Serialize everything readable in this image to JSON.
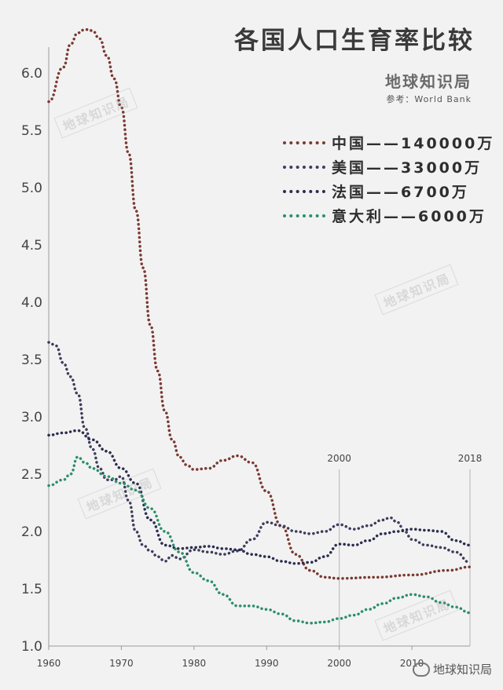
{
  "chart_data": {
    "type": "line",
    "title": "各国人口生育率比较",
    "brand": "地球知识局",
    "source": "参考：World Bank",
    "ylim": [
      1.0,
      6.5
    ],
    "yticks": [
      "1.0",
      "1.5",
      "2.0",
      "2.5",
      "3.0",
      "3.5",
      "4.0",
      "4.5",
      "5.0",
      "5.5",
      "6.0"
    ],
    "xlim": [
      1960,
      2018
    ],
    "xticks": [
      "1960",
      "1970",
      "1980",
      "1990",
      "2000",
      "2010"
    ],
    "reference_lines": [
      {
        "x": 2000,
        "label": "2000"
      },
      {
        "x": 2018,
        "label": "2018"
      }
    ],
    "grid": false,
    "legend_position": "top-right",
    "series": [
      {
        "name": "中国",
        "legend_label": "中国——140000万",
        "color": "#7a3a32",
        "points": [
          [
            1960,
            5.75
          ],
          [
            1962,
            6.05
          ],
          [
            1963,
            6.25
          ],
          [
            1964,
            6.35
          ],
          [
            1965,
            6.38
          ],
          [
            1966,
            6.37
          ],
          [
            1967,
            6.3
          ],
          [
            1968,
            6.15
          ],
          [
            1969,
            5.95
          ],
          [
            1970,
            5.7
          ],
          [
            1971,
            5.3
          ],
          [
            1972,
            4.8
          ],
          [
            1973,
            4.3
          ],
          [
            1974,
            3.8
          ],
          [
            1975,
            3.4
          ],
          [
            1976,
            3.05
          ],
          [
            1977,
            2.8
          ],
          [
            1978,
            2.65
          ],
          [
            1979,
            2.58
          ],
          [
            1980,
            2.54
          ],
          [
            1982,
            2.55
          ],
          [
            1984,
            2.62
          ],
          [
            1986,
            2.66
          ],
          [
            1988,
            2.6
          ],
          [
            1990,
            2.35
          ],
          [
            1992,
            2.05
          ],
          [
            1994,
            1.8
          ],
          [
            1996,
            1.66
          ],
          [
            1998,
            1.6
          ],
          [
            2000,
            1.59
          ],
          [
            2005,
            1.6
          ],
          [
            2010,
            1.62
          ],
          [
            2015,
            1.66
          ],
          [
            2018,
            1.69
          ]
        ]
      },
      {
        "name": "美国",
        "legend_label": "美国——33000万",
        "color": "#3d3d5c",
        "points": [
          [
            1960,
            3.65
          ],
          [
            1961,
            3.62
          ],
          [
            1962,
            3.47
          ],
          [
            1963,
            3.35
          ],
          [
            1964,
            3.2
          ],
          [
            1965,
            2.9
          ],
          [
            1966,
            2.72
          ],
          [
            1967,
            2.55
          ],
          [
            1968,
            2.45
          ],
          [
            1969,
            2.45
          ],
          [
            1970,
            2.48
          ],
          [
            1971,
            2.27
          ],
          [
            1972,
            2.0
          ],
          [
            1973,
            1.88
          ],
          [
            1974,
            1.83
          ],
          [
            1975,
            1.78
          ],
          [
            1976,
            1.74
          ],
          [
            1977,
            1.79
          ],
          [
            1978,
            1.76
          ],
          [
            1980,
            1.84
          ],
          [
            1982,
            1.82
          ],
          [
            1984,
            1.8
          ],
          [
            1986,
            1.83
          ],
          [
            1988,
            1.93
          ],
          [
            1990,
            2.08
          ],
          [
            1992,
            2.05
          ],
          [
            1994,
            2.0
          ],
          [
            1996,
            1.98
          ],
          [
            1998,
            2.0
          ],
          [
            2000,
            2.06
          ],
          [
            2002,
            2.02
          ],
          [
            2004,
            2.05
          ],
          [
            2006,
            2.1
          ],
          [
            2007,
            2.12
          ],
          [
            2008,
            2.08
          ],
          [
            2009,
            2.0
          ],
          [
            2010,
            1.93
          ],
          [
            2012,
            1.88
          ],
          [
            2014,
            1.86
          ],
          [
            2016,
            1.82
          ],
          [
            2018,
            1.73
          ]
        ]
      },
      {
        "name": "法国",
        "legend_label": "法国——6700万",
        "color": "#2b2d4f",
        "points": [
          [
            1960,
            2.84
          ],
          [
            1962,
            2.86
          ],
          [
            1964,
            2.88
          ],
          [
            1966,
            2.8
          ],
          [
            1968,
            2.7
          ],
          [
            1970,
            2.55
          ],
          [
            1972,
            2.42
          ],
          [
            1974,
            2.1
          ],
          [
            1976,
            1.88
          ],
          [
            1978,
            1.85
          ],
          [
            1980,
            1.86
          ],
          [
            1982,
            1.87
          ],
          [
            1984,
            1.85
          ],
          [
            1986,
            1.84
          ],
          [
            1988,
            1.8
          ],
          [
            1990,
            1.78
          ],
          [
            1992,
            1.74
          ],
          [
            1994,
            1.72
          ],
          [
            1996,
            1.73
          ],
          [
            1998,
            1.78
          ],
          [
            2000,
            1.89
          ],
          [
            2002,
            1.88
          ],
          [
            2004,
            1.92
          ],
          [
            2006,
            1.98
          ],
          [
            2008,
            2.0
          ],
          [
            2010,
            2.02
          ],
          [
            2012,
            2.01
          ],
          [
            2014,
            2.0
          ],
          [
            2016,
            1.92
          ],
          [
            2018,
            1.88
          ]
        ]
      },
      {
        "name": "意大利",
        "legend_label": "意大利——6000万",
        "color": "#2d8f6a",
        "points": [
          [
            1960,
            2.4
          ],
          [
            1962,
            2.45
          ],
          [
            1963,
            2.5
          ],
          [
            1964,
            2.65
          ],
          [
            1965,
            2.6
          ],
          [
            1966,
            2.55
          ],
          [
            1968,
            2.48
          ],
          [
            1970,
            2.42
          ],
          [
            1972,
            2.36
          ],
          [
            1974,
            2.2
          ],
          [
            1976,
            2.0
          ],
          [
            1978,
            1.82
          ],
          [
            1980,
            1.64
          ],
          [
            1982,
            1.57
          ],
          [
            1984,
            1.45
          ],
          [
            1986,
            1.35
          ],
          [
            1988,
            1.35
          ],
          [
            1990,
            1.32
          ],
          [
            1992,
            1.28
          ],
          [
            1994,
            1.22
          ],
          [
            1996,
            1.2
          ],
          [
            1998,
            1.21
          ],
          [
            2000,
            1.24
          ],
          [
            2002,
            1.27
          ],
          [
            2004,
            1.32
          ],
          [
            2006,
            1.37
          ],
          [
            2008,
            1.42
          ],
          [
            2010,
            1.45
          ],
          [
            2012,
            1.43
          ],
          [
            2014,
            1.38
          ],
          [
            2016,
            1.34
          ],
          [
            2018,
            1.29
          ]
        ]
      }
    ]
  },
  "watermark_text": "地球知识局",
  "footer_watermark": "地球知识局"
}
